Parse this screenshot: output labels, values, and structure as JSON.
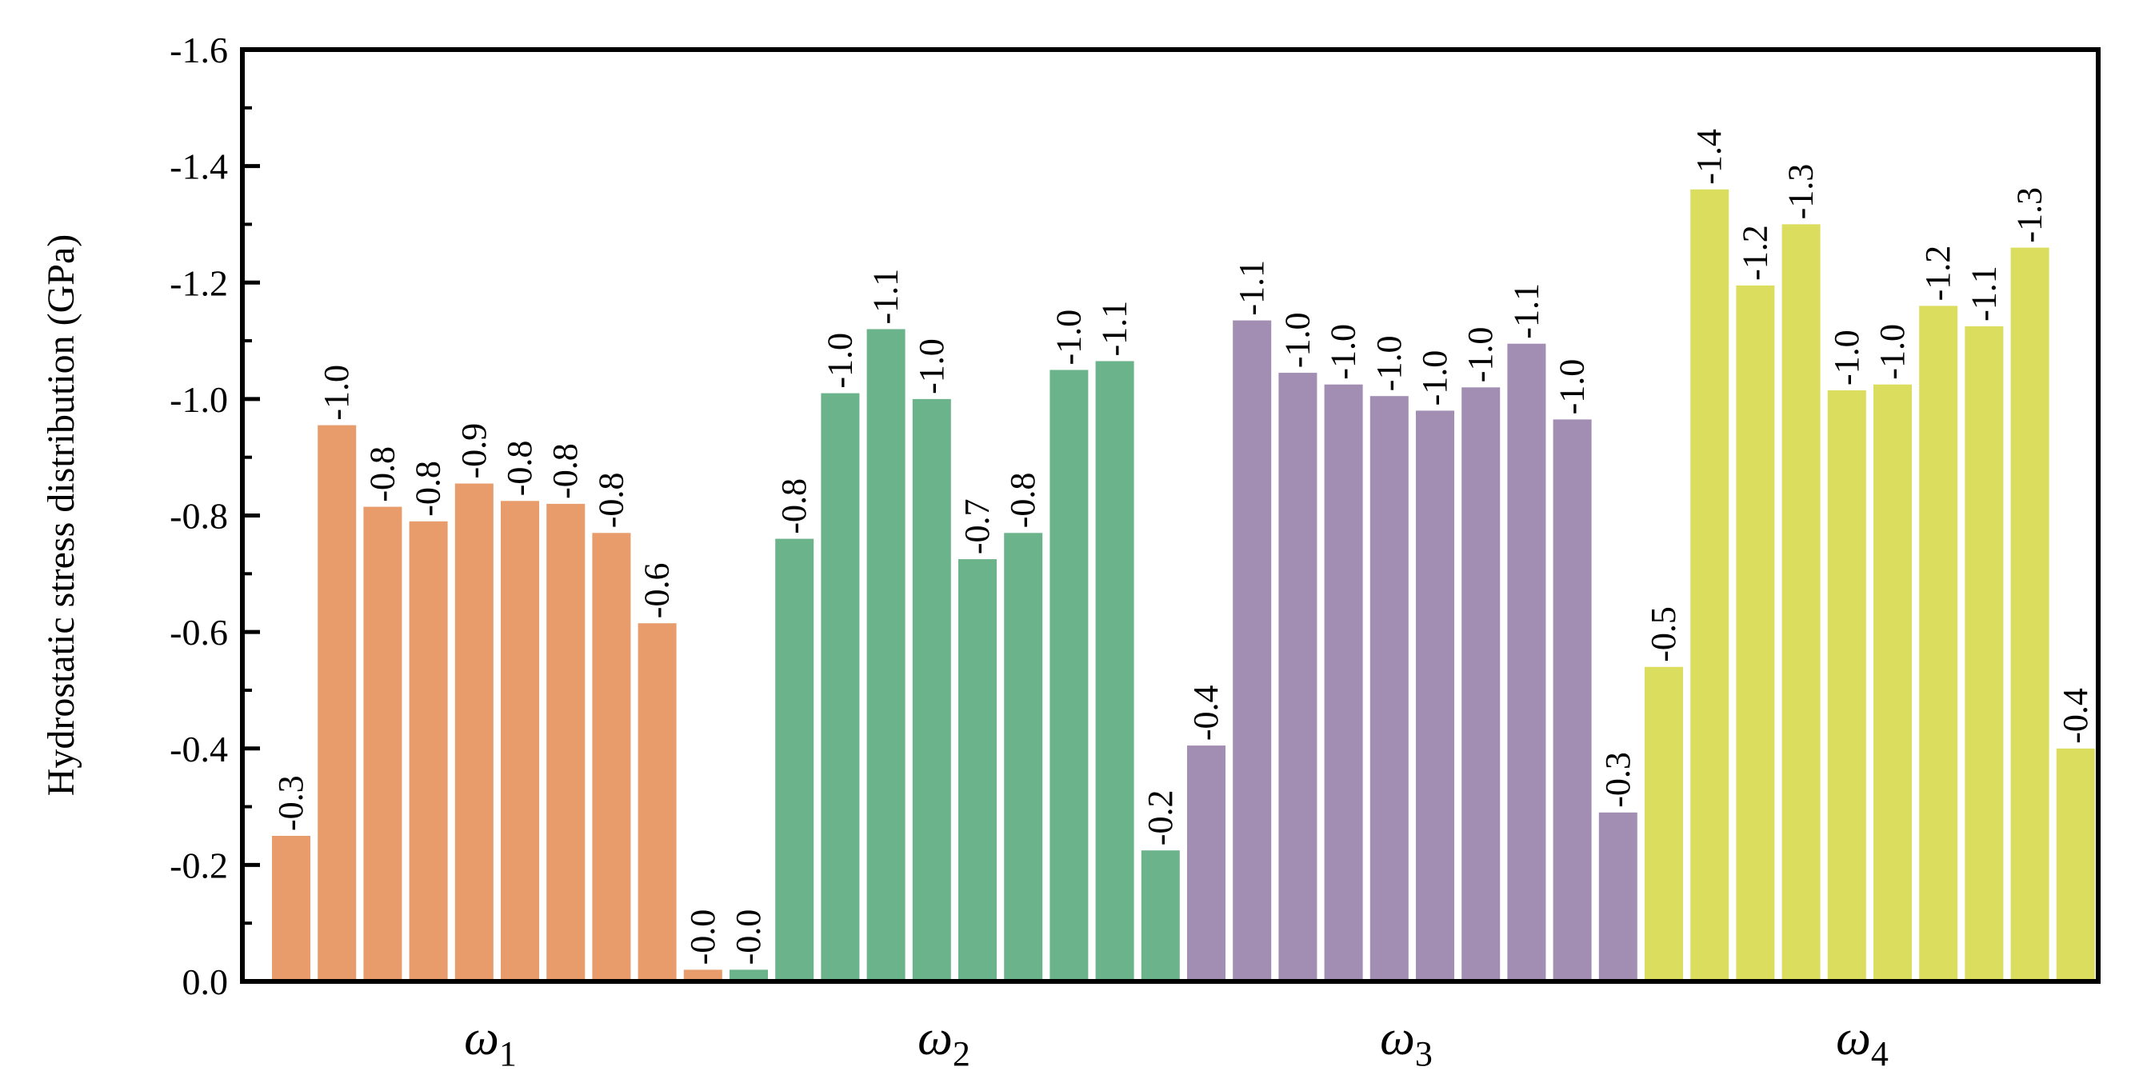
{
  "chart_data": {
    "type": "bar",
    "ylabel": "Hydrostatic stress distribution (GPa)",
    "ylim": [
      0.0,
      -1.6
    ],
    "y_ticks": [
      "-1.6",
      "-1.4",
      "-1.2",
      "-1.0",
      "-0.8",
      "-0.6",
      "-0.4",
      "-0.2",
      "0.0"
    ],
    "y_tick_values": [
      -1.6,
      -1.4,
      -1.2,
      -1.0,
      -0.8,
      -0.6,
      -0.4,
      -0.2,
      0.0
    ],
    "categories": [
      {
        "symbol": "ω",
        "subscript": "1"
      },
      {
        "symbol": "ω",
        "subscript": "2"
      },
      {
        "symbol": "ω",
        "subscript": "3"
      },
      {
        "symbol": "ω",
        "subscript": "4"
      }
    ],
    "bars": [
      {
        "group": 1,
        "value": -0.25,
        "label": "-0.3",
        "color": "#E89C6C"
      },
      {
        "group": 1,
        "value": -0.955,
        "label": "-1.0",
        "color": "#E89C6C"
      },
      {
        "group": 1,
        "value": -0.815,
        "label": "-0.8",
        "color": "#E89C6C"
      },
      {
        "group": 1,
        "value": -0.79,
        "label": "-0.8",
        "color": "#E89C6C"
      },
      {
        "group": 1,
        "value": -0.855,
        "label": "-0.9",
        "color": "#E89C6C"
      },
      {
        "group": 1,
        "value": -0.825,
        "label": "-0.8",
        "color": "#E89C6C"
      },
      {
        "group": 1,
        "value": -0.82,
        "label": "-0.8",
        "color": "#E89C6C"
      },
      {
        "group": 1,
        "value": -0.77,
        "label": "-0.8",
        "color": "#E89C6C"
      },
      {
        "group": 1,
        "value": -0.615,
        "label": "-0.6",
        "color": "#E89C6C"
      },
      {
        "group": 1,
        "value": -0.02,
        "label": "-0.0",
        "color": "#E89C6C"
      },
      {
        "group": 2,
        "value": -0.02,
        "label": "-0.0",
        "color": "#6BB38A"
      },
      {
        "group": 2,
        "value": -0.76,
        "label": "-0.8",
        "color": "#6BB38A"
      },
      {
        "group": 2,
        "value": -1.01,
        "label": "-1.0",
        "color": "#6BB38A"
      },
      {
        "group": 2,
        "value": -1.12,
        "label": "-1.1",
        "color": "#6BB38A"
      },
      {
        "group": 2,
        "value": -1.0,
        "label": "-1.0",
        "color": "#6BB38A"
      },
      {
        "group": 2,
        "value": -0.725,
        "label": "-0.7",
        "color": "#6BB38A"
      },
      {
        "group": 2,
        "value": -0.77,
        "label": "-0.8",
        "color": "#6BB38A"
      },
      {
        "group": 2,
        "value": -1.05,
        "label": "-1.0",
        "color": "#6BB38A"
      },
      {
        "group": 2,
        "value": -1.065,
        "label": "-1.1",
        "color": "#6BB38A"
      },
      {
        "group": 2,
        "value": -0.225,
        "label": "-0.2",
        "color": "#6BB38A"
      },
      {
        "group": 3,
        "value": -0.405,
        "label": "-0.4",
        "color": "#A28DB3"
      },
      {
        "group": 3,
        "value": -1.135,
        "label": "-1.1",
        "color": "#A28DB3"
      },
      {
        "group": 3,
        "value": -1.045,
        "label": "-1.0",
        "color": "#A28DB3"
      },
      {
        "group": 3,
        "value": -1.025,
        "label": "-1.0",
        "color": "#A28DB3"
      },
      {
        "group": 3,
        "value": -1.005,
        "label": "-1.0",
        "color": "#A28DB3"
      },
      {
        "group": 3,
        "value": -0.98,
        "label": "-1.0",
        "color": "#A28DB3"
      },
      {
        "group": 3,
        "value": -1.02,
        "label": "-1.0",
        "color": "#A28DB3"
      },
      {
        "group": 3,
        "value": -1.095,
        "label": "-1.1",
        "color": "#A28DB3"
      },
      {
        "group": 3,
        "value": -0.965,
        "label": "-1.0",
        "color": "#A28DB3"
      },
      {
        "group": 3,
        "value": -0.29,
        "label": "-0.3",
        "color": "#A28DB3"
      },
      {
        "group": 4,
        "value": -0.54,
        "label": "-0.5",
        "color": "#DADD5E"
      },
      {
        "group": 4,
        "value": -1.36,
        "label": "-1.4",
        "color": "#DADD5E"
      },
      {
        "group": 4,
        "value": -1.195,
        "label": "-1.2",
        "color": "#DADD5E"
      },
      {
        "group": 4,
        "value": -1.3,
        "label": "-1.3",
        "color": "#DADD5E"
      },
      {
        "group": 4,
        "value": -1.015,
        "label": "-1.0",
        "color": "#DADD5E"
      },
      {
        "group": 4,
        "value": -1.025,
        "label": "-1.0",
        "color": "#DADD5E"
      },
      {
        "group": 4,
        "value": -1.16,
        "label": "-1.2",
        "color": "#DADD5E"
      },
      {
        "group": 4,
        "value": -1.125,
        "label": "-1.1",
        "color": "#DADD5E"
      },
      {
        "group": 4,
        "value": -1.26,
        "label": "-1.3",
        "color": "#DADD5E"
      },
      {
        "group": 4,
        "value": -0.4,
        "label": "-0.4",
        "color": "#DADD5E"
      }
    ]
  }
}
